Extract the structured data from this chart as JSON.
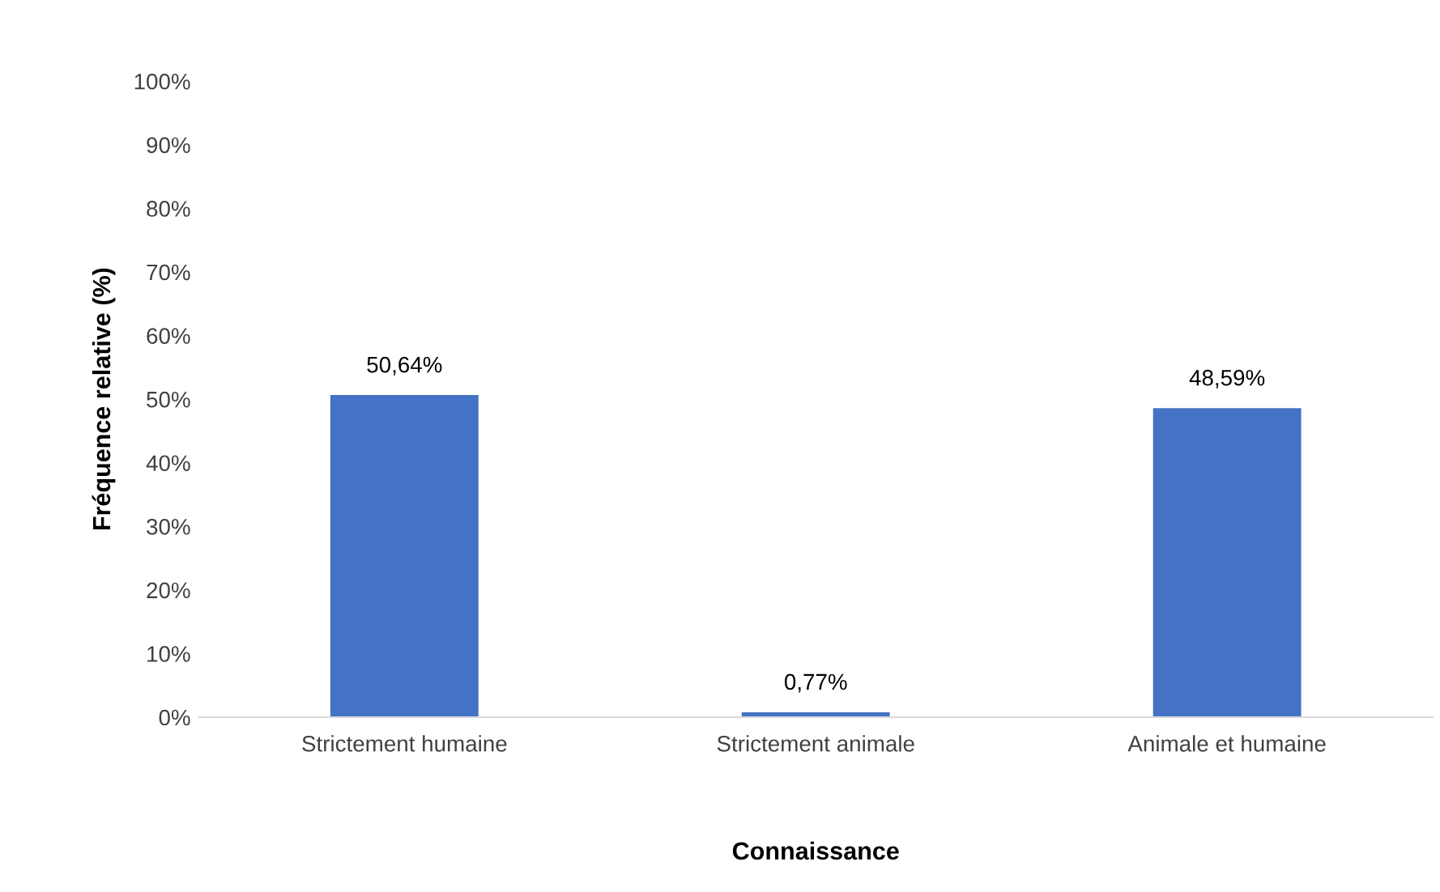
{
  "chart_data": {
    "type": "bar",
    "xlabel": "Connaissance",
    "ylabel": "Fréquence relative (%)",
    "categories": [
      "Strictement humaine",
      "Strictement animale",
      "Animale et humaine"
    ],
    "values": [
      50.64,
      0.77,
      48.59
    ],
    "value_labels": [
      "50,64%",
      "0,77%",
      "48,59%"
    ],
    "color": "#4472c4",
    "ylim": [
      0,
      100
    ],
    "yticks": [
      {
        "value": 0,
        "label": "0%"
      },
      {
        "value": 10,
        "label": "10%"
      },
      {
        "value": 20,
        "label": "20%"
      },
      {
        "value": 30,
        "label": "30%"
      },
      {
        "value": 40,
        "label": "40%"
      },
      {
        "value": 50,
        "label": "50%"
      },
      {
        "value": 60,
        "label": "60%"
      },
      {
        "value": 70,
        "label": "70%"
      },
      {
        "value": 80,
        "label": "80%"
      },
      {
        "value": 90,
        "label": "90%"
      },
      {
        "value": 100,
        "label": "100%"
      }
    ],
    "grid": false,
    "legend": false
  }
}
